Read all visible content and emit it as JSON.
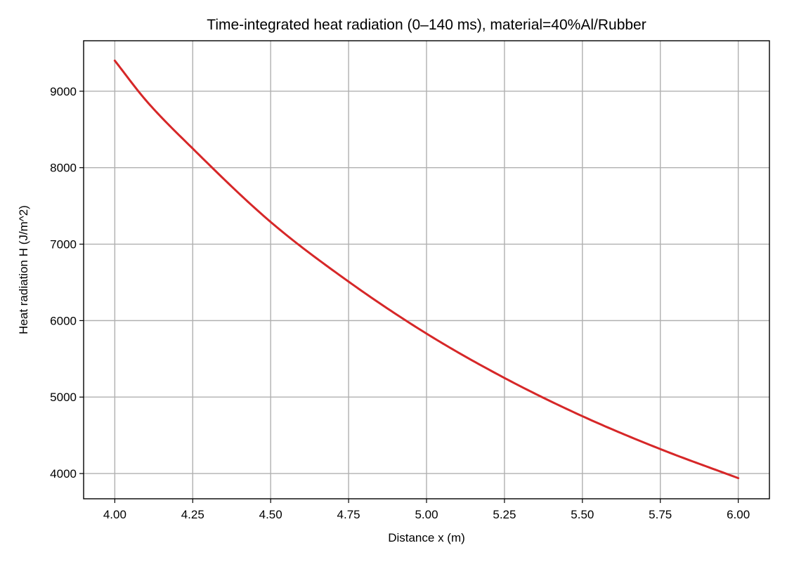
{
  "chart_data": {
    "type": "line",
    "title": "Time-integrated heat radiation (0–140 ms), material=40%Al/Rubber",
    "xlabel": "Distance x (m)",
    "ylabel": "Heat radiation H (J/m^2)",
    "xlim": [
      3.9,
      6.1
    ],
    "ylim": [
      3670,
      9660
    ],
    "xticks": [
      4.0,
      4.25,
      4.5,
      4.75,
      5.0,
      5.25,
      5.5,
      5.75,
      6.0
    ],
    "xtick_labels": [
      "4.00",
      "4.25",
      "4.50",
      "4.75",
      "5.00",
      "5.25",
      "5.50",
      "5.75",
      "6.00"
    ],
    "yticks": [
      4000,
      5000,
      6000,
      7000,
      8000,
      9000
    ],
    "ytick_labels": [
      "4000",
      "5000",
      "6000",
      "7000",
      "8000",
      "9000"
    ],
    "grid": true,
    "colors": {
      "line": "#d62728"
    },
    "series": [
      {
        "x": [
          4.0,
          4.1,
          4.25,
          4.5,
          4.75,
          5.0,
          5.25,
          5.5,
          5.75,
          6.0
        ],
        "values": [
          9400,
          8880,
          8250,
          7290,
          6510,
          5830,
          5250,
          4750,
          4320,
          3940
        ]
      }
    ]
  }
}
